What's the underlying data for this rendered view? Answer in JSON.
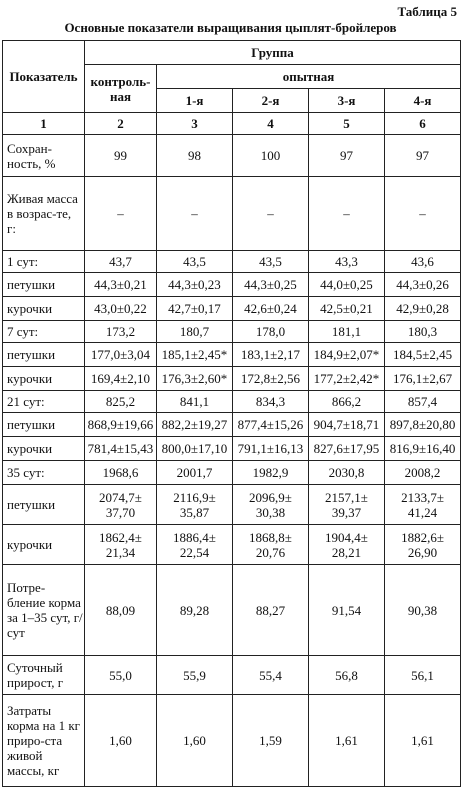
{
  "header": {
    "table_number": "Таблица 5",
    "title": "Основные показатели выращивания цыплят-бройлеров"
  },
  "table": {
    "head": {
      "indicator": "Показатель",
      "group": "Группа",
      "control": "контроль-ная",
      "experimental": "опытная",
      "subgroups": [
        "1-я",
        "2-я",
        "3-я",
        "4-я"
      ],
      "numbers": [
        "1",
        "2",
        "3",
        "4",
        "5",
        "6"
      ]
    },
    "rows": [
      {
        "label": "Сохран-ность, %",
        "values": [
          "99",
          "98",
          "100",
          "97",
          "97"
        ]
      },
      {
        "label": "Живая масса в возрас-те, г:",
        "values": [
          "–",
          "–",
          "–",
          "–",
          "–"
        ]
      },
      {
        "label": "1 сут:",
        "values": [
          "43,7",
          "43,5",
          "43,5",
          "43,3",
          "43,6"
        ]
      },
      {
        "label": "петушки",
        "values": [
          "44,3±0,21",
          "44,3±0,23",
          "44,3±0,25",
          "44,0±0,25",
          "44,3±0,26"
        ]
      },
      {
        "label": "курочки",
        "values": [
          "43,0±0,22",
          "42,7±0,17",
          "42,6±0,24",
          "42,5±0,21",
          "42,9±0,28"
        ]
      },
      {
        "label": "7 сут:",
        "values": [
          "173,2",
          "180,7",
          "178,0",
          "181,1",
          "180,3"
        ]
      },
      {
        "label": "петушки",
        "values": [
          "177,0±3,04",
          "185,1±2,45*",
          "183,1±2,17",
          "184,9±2,07*",
          "184,5±2,45"
        ]
      },
      {
        "label": "курочки",
        "values": [
          "169,4±2,10",
          "176,3±2,60*",
          "172,8±2,56",
          "177,2±2,42*",
          "176,1±2,67"
        ]
      },
      {
        "label": "21 сут:",
        "values": [
          "825,2",
          "841,1",
          "834,3",
          "866,2",
          "857,4"
        ]
      },
      {
        "label": "петушки",
        "values": [
          "868,9±19,66",
          "882,2±19,27",
          "877,4±15,26",
          "904,7±18,71",
          "897,8±20,80"
        ]
      },
      {
        "label": "курочки",
        "values": [
          "781,4±15,43",
          "800,0±17,10",
          "791,1±16,13",
          "827,6±17,95",
          "816,9±16,40"
        ]
      },
      {
        "label": "35 сут:",
        "values": [
          "1968,6",
          "2001,7",
          "1982,9",
          "2030,8",
          "2008,2"
        ]
      },
      {
        "label": "петушки",
        "values": [
          "2074,7± 37,70",
          "2116,9± 35,87",
          "2096,9± 30,38",
          "2157,1± 39,37",
          "2133,7± 41,24"
        ]
      },
      {
        "label": "курочки",
        "values": [
          "1862,4± 21,34",
          "1886,4± 22,54",
          "1868,8± 20,76",
          "1904,4± 28,21",
          "1882,6± 26,90"
        ]
      },
      {
        "label": "Потре-бление корма за 1–35 сут, г/сут",
        "values": [
          "88,09",
          "89,28",
          "88,27",
          "91,54",
          "90,38"
        ]
      },
      {
        "label": "Суточный прирост, г",
        "values": [
          "55,0",
          "55,9",
          "55,4",
          "56,8",
          "56,1"
        ]
      },
      {
        "label": "Затраты корма на 1 кг приро-ста живой массы, кг",
        "values": [
          "1,60",
          "1,60",
          "1,59",
          "1,61",
          "1,61"
        ]
      }
    ]
  }
}
